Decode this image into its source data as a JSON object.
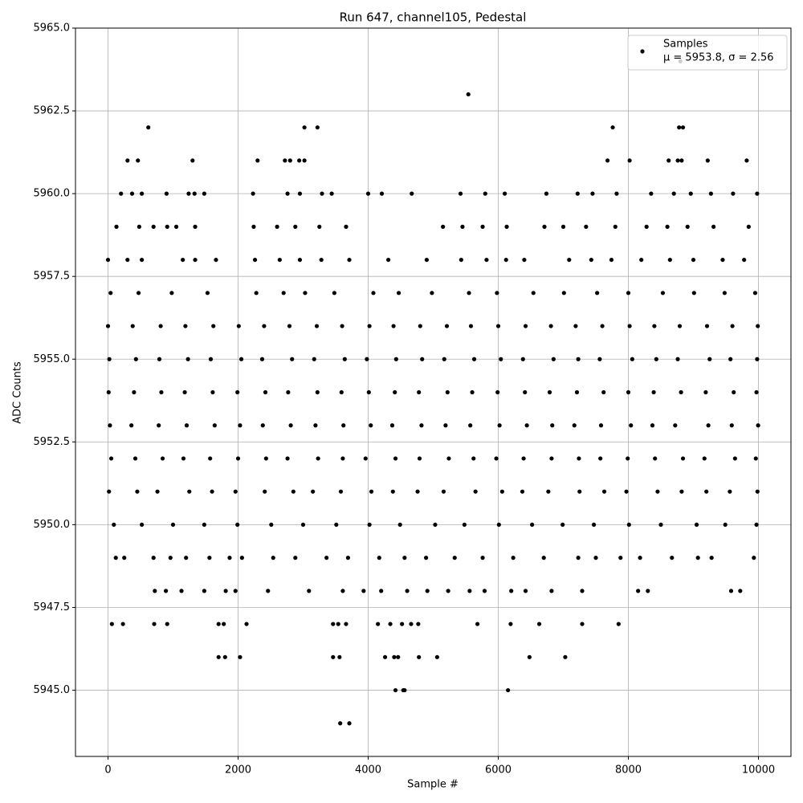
{
  "chart_data": {
    "type": "scatter",
    "title": "Run 647, channel105, Pedestal",
    "x_label": "Sample #",
    "y_label": "ADC Counts",
    "xlim": [
      -500,
      10500
    ],
    "ylim": [
      5943,
      5965
    ],
    "xticks": [
      0,
      2000,
      4000,
      6000,
      8000,
      10000
    ],
    "yticks": [
      {
        "value": 5945,
        "label": "5945.0"
      },
      5947.5,
      {
        "value": 5950,
        "label": "5950.0"
      },
      5952.5,
      {
        "value": 5955,
        "label": "5955.0"
      },
      5957.5,
      {
        "value": 5960,
        "label": "5960.0"
      },
      5962.5,
      {
        "value": 5965,
        "label": "5965.0"
      }
    ],
    "grid": true,
    "legend": "upper right",
    "legend_stats": "μ = 5953.8, σ = 2.56",
    "series": [
      {
        "name": "Samples",
        "color": "#000000",
        "x": [
          0,
          380,
          810,
          1190,
          1620,
          2010,
          2400,
          2790,
          3210,
          3600,
          4020,
          4390,
          4800,
          5210,
          5580,
          6000,
          6420,
          6810,
          7190,
          7600,
          8020,
          8400,
          8790,
          9210,
          9600,
          9990,
          20,
          430,
          790,
          1230,
          1580,
          2050,
          2370,
          2830,
          3170,
          3640,
          3980,
          4430,
          4830,
          5170,
          5630,
          6040,
          6380,
          6850,
          7230,
          7560,
          8060,
          8430,
          8760,
          9250,
          9570,
          9980,
          10,
          400,
          820,
          1180,
          1610,
          1990,
          2420,
          2770,
          3220,
          3590,
          4010,
          4410,
          4780,
          5220,
          5600,
          5990,
          6410,
          6790,
          7210,
          7620,
          8000,
          8390,
          8810,
          9190,
          9620,
          9970,
          30,
          360,
          780,
          1210,
          1640,
          2030,
          2380,
          2810,
          3190,
          3620,
          4040,
          4370,
          4820,
          5190,
          5570,
          6020,
          6440,
          6830,
          7170,
          7580,
          8040,
          8370,
          8720,
          9230,
          9590,
          9995,
          50,
          420,
          840,
          1160,
          1570,
          2000,
          2430,
          2760,
          3230,
          3610,
          3960,
          4420,
          4790,
          5240,
          5620,
          5970,
          6390,
          6820,
          7240,
          7570,
          7990,
          8410,
          8840,
          9170,
          9640,
          9960,
          15,
          450,
          760,
          1250,
          1600,
          1960,
          2410,
          2850,
          3150,
          3580,
          4050,
          4380,
          4760,
          5160,
          5650,
          6060,
          6370,
          6770,
          7250,
          7630,
          7970,
          8450,
          8820,
          9200,
          9560,
          9985,
          90,
          520,
          1000,
          1480,
          1990,
          2510,
          3000,
          3510,
          4020,
          4490,
          5030,
          5480,
          6010,
          6520,
          6990,
          7470,
          8010,
          8500,
          9050,
          9490,
          9970,
          40,
          470,
          980,
          1530,
          2280,
          2700,
          3030,
          3480,
          4080,
          4470,
          4980,
          5550,
          5980,
          6540,
          7010,
          7520,
          8000,
          8530,
          9010,
          9480,
          9950,
          0,
          300,
          520,
          1150,
          1340,
          1660,
          2260,
          2640,
          2950,
          3280,
          3710,
          4310,
          4900,
          5430,
          5820,
          6120,
          6400,
          7090,
          7430,
          7740,
          8200,
          8640,
          9000,
          9450,
          9780,
          120,
          250,
          700,
          960,
          1200,
          1560,
          1870,
          2060,
          2540,
          2880,
          3360,
          3690,
          4170,
          4560,
          4890,
          5330,
          5760,
          6230,
          6700,
          7230,
          7500,
          7880,
          8180,
          8670,
          9070,
          9280,
          9930,
          720,
          890,
          1130,
          1480,
          1810,
          1960,
          2460,
          3090,
          3610,
          3930,
          4200,
          4600,
          4910,
          5230,
          5560,
          5790,
          6200,
          6420,
          6820,
          7290,
          8150,
          8300,
          9580,
          9720,
          130,
          480,
          700,
          910,
          1050,
          1340,
          2240,
          2600,
          2880,
          3250,
          3660,
          5150,
          5450,
          5760,
          6130,
          6710,
          7000,
          7350,
          7800,
          8280,
          8600,
          8910,
          9310,
          9850,
          200,
          370,
          520,
          900,
          1240,
          1330,
          1480,
          2230,
          2760,
          2950,
          3290,
          3440,
          4000,
          4210,
          4670,
          5420,
          5800,
          6100,
          6740,
          7220,
          7450,
          7820,
          8350,
          8700,
          8960,
          9270,
          9610,
          9980,
          8800,
          5540,
          620,
          3020,
          3220,
          7760,
          8780,
          8840,
          300,
          460,
          1300,
          2300,
          2720,
          2800,
          2940,
          3020,
          7680,
          8020,
          8620,
          8760,
          8820,
          9220,
          9820,
          60,
          230,
          710,
          910,
          1700,
          1780,
          2130,
          3460,
          3540,
          3660,
          4150,
          4340,
          4520,
          4660,
          4770,
          5680,
          6190,
          6630,
          7290,
          7850,
          1700,
          1800,
          2030,
          3460,
          3560,
          4260,
          4400,
          4460,
          4780,
          5060,
          6480,
          7030,
          4420,
          4540,
          4560,
          6150,
          3570,
          3710
        ],
        "values": [
          5956,
          5956,
          5956,
          5956,
          5956,
          5956,
          5956,
          5956,
          5956,
          5956,
          5956,
          5956,
          5956,
          5956,
          5956,
          5956,
          5956,
          5956,
          5956,
          5956,
          5956,
          5956,
          5956,
          5956,
          5956,
          5956,
          5955,
          5955,
          5955,
          5955,
          5955,
          5955,
          5955,
          5955,
          5955,
          5955,
          5955,
          5955,
          5955,
          5955,
          5955,
          5955,
          5955,
          5955,
          5955,
          5955,
          5955,
          5955,
          5955,
          5955,
          5955,
          5955,
          5954,
          5954,
          5954,
          5954,
          5954,
          5954,
          5954,
          5954,
          5954,
          5954,
          5954,
          5954,
          5954,
          5954,
          5954,
          5954,
          5954,
          5954,
          5954,
          5954,
          5954,
          5954,
          5954,
          5954,
          5954,
          5954,
          5953,
          5953,
          5953,
          5953,
          5953,
          5953,
          5953,
          5953,
          5953,
          5953,
          5953,
          5953,
          5953,
          5953,
          5953,
          5953,
          5953,
          5953,
          5953,
          5953,
          5953,
          5953,
          5953,
          5953,
          5953,
          5953,
          5952,
          5952,
          5952,
          5952,
          5952,
          5952,
          5952,
          5952,
          5952,
          5952,
          5952,
          5952,
          5952,
          5952,
          5952,
          5952,
          5952,
          5952,
          5952,
          5952,
          5952,
          5952,
          5952,
          5952,
          5952,
          5952,
          5951,
          5951,
          5951,
          5951,
          5951,
          5951,
          5951,
          5951,
          5951,
          5951,
          5951,
          5951,
          5951,
          5951,
          5951,
          5951,
          5951,
          5951,
          5951,
          5951,
          5951,
          5951,
          5951,
          5951,
          5951,
          5951,
          5950,
          5950,
          5950,
          5950,
          5950,
          5950,
          5950,
          5950,
          5950,
          5950,
          5950,
          5950,
          5950,
          5950,
          5950,
          5950,
          5950,
          5950,
          5950,
          5950,
          5950,
          5957,
          5957,
          5957,
          5957,
          5957,
          5957,
          5957,
          5957,
          5957,
          5957,
          5957,
          5957,
          5957,
          5957,
          5957,
          5957,
          5957,
          5957,
          5957,
          5957,
          5957,
          5958,
          5958,
          5958,
          5958,
          5958,
          5958,
          5958,
          5958,
          5958,
          5958,
          5958,
          5958,
          5958,
          5958,
          5958,
          5958,
          5958,
          5958,
          5958,
          5958,
          5958,
          5958,
          5958,
          5958,
          5958,
          5949,
          5949,
          5949,
          5949,
          5949,
          5949,
          5949,
          5949,
          5949,
          5949,
          5949,
          5949,
          5949,
          5949,
          5949,
          5949,
          5949,
          5949,
          5949,
          5949,
          5949,
          5949,
          5949,
          5949,
          5949,
          5949,
          5949,
          5948,
          5948,
          5948,
          5948,
          5948,
          5948,
          5948,
          5948,
          5948,
          5948,
          5948,
          5948,
          5948,
          5948,
          5948,
          5948,
          5948,
          5948,
          5948,
          5948,
          5948,
          5948,
          5948,
          5948,
          5959,
          5959,
          5959,
          5959,
          5959,
          5959,
          5959,
          5959,
          5959,
          5959,
          5959,
          5959,
          5959,
          5959,
          5959,
          5959,
          5959,
          5959,
          5959,
          5959,
          5959,
          5959,
          5959,
          5959,
          5960,
          5960,
          5960,
          5960,
          5960,
          5960,
          5960,
          5960,
          5960,
          5960,
          5960,
          5960,
          5960,
          5960,
          5960,
          5960,
          5960,
          5960,
          5960,
          5960,
          5960,
          5960,
          5960,
          5960,
          5960,
          5960,
          5960,
          5960,
          5964,
          5963,
          5962,
          5962,
          5962,
          5962,
          5962,
          5962,
          5961,
          5961,
          5961,
          5961,
          5961,
          5961,
          5961,
          5961,
          5961,
          5961,
          5961,
          5961,
          5961,
          5961,
          5961,
          5947,
          5947,
          5947,
          5947,
          5947,
          5947,
          5947,
          5947,
          5947,
          5947,
          5947,
          5947,
          5947,
          5947,
          5947,
          5947,
          5947,
          5947,
          5947,
          5947,
          5946,
          5946,
          5946,
          5946,
          5946,
          5946,
          5946,
          5946,
          5946,
          5946,
          5946,
          5946,
          5945,
          5945,
          5945,
          5945,
          5944,
          5944
        ]
      }
    ]
  }
}
